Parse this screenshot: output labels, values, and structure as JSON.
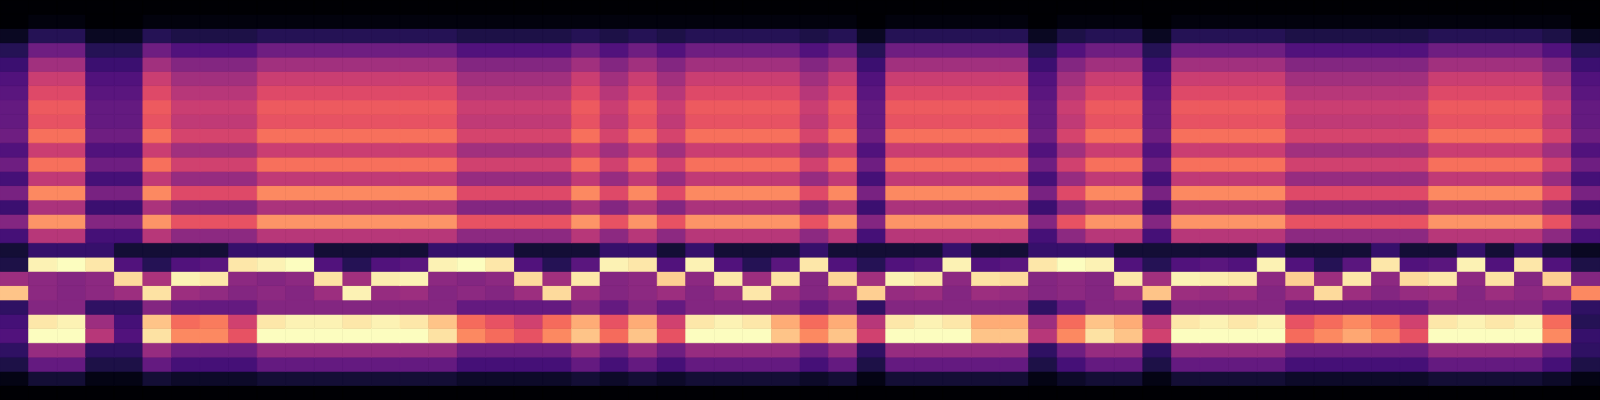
{
  "chart_data": {
    "type": "heatmap",
    "color": "magma",
    "tick_labels": false,
    "xlim": [
      0,
      56
    ],
    "ylim": [
      0,
      28
    ],
    "zlim": [
      0,
      80
    ],
    "cells": [
      [
        0,
        0,
        0,
        0,
        0,
        0,
        0,
        0,
        0,
        0,
        0,
        0,
        0,
        0,
        0,
        0,
        0,
        0,
        0,
        0,
        0,
        0,
        0,
        0,
        0,
        0,
        0,
        0,
        0,
        0,
        0,
        0,
        0,
        0,
        0,
        0,
        0,
        0,
        0,
        0,
        0,
        0,
        0,
        0,
        0,
        0,
        0,
        0,
        0,
        0,
        0,
        0,
        0,
        0,
        0,
        0
      ],
      [
        3,
        8,
        8,
        3,
        3,
        8,
        6,
        6,
        6,
        8,
        8,
        8,
        8,
        8,
        8,
        8,
        6,
        6,
        6,
        6,
        8,
        6,
        8,
        6,
        8,
        8,
        8,
        8,
        6,
        8,
        3,
        8,
        8,
        8,
        8,
        8,
        3,
        6,
        8,
        8,
        3,
        8,
        8,
        8,
        8,
        6,
        6,
        6,
        6,
        6,
        8,
        8,
        8,
        8,
        6,
        3
      ],
      [
        10,
        24,
        24,
        10,
        10,
        24,
        18,
        18,
        18,
        24,
        24,
        24,
        24,
        24,
        24,
        24,
        18,
        18,
        18,
        18,
        24,
        18,
        24,
        18,
        24,
        24,
        24,
        24,
        18,
        24,
        10,
        24,
        24,
        24,
        24,
        24,
        10,
        18,
        24,
        24,
        10,
        24,
        24,
        24,
        24,
        18,
        18,
        18,
        18,
        18,
        24,
        24,
        24,
        24,
        18,
        10
      ],
      [
        14,
        34,
        34,
        14,
        14,
        34,
        26,
        26,
        26,
        34,
        34,
        34,
        34,
        34,
        34,
        34,
        26,
        26,
        26,
        26,
        34,
        26,
        34,
        26,
        34,
        34,
        34,
        34,
        26,
        34,
        14,
        34,
        34,
        34,
        34,
        34,
        14,
        26,
        34,
        34,
        14,
        34,
        34,
        34,
        34,
        26,
        26,
        26,
        26,
        26,
        34,
        34,
        34,
        34,
        26,
        14
      ],
      [
        20,
        80,
        80,
        40,
        20,
        75,
        60,
        60,
        50,
        80,
        80,
        80,
        80,
        80,
        80,
        75,
        60,
        55,
        50,
        60,
        70,
        55,
        70,
        50,
        80,
        80,
        80,
        70,
        60,
        70,
        45,
        80,
        80,
        80,
        70,
        70,
        40,
        60,
        75,
        70,
        45,
        80,
        80,
        80,
        80,
        55,
        60,
        65,
        60,
        50,
        80,
        80,
        80,
        80,
        60,
        15
      ],
      [
        18,
        76,
        78,
        35,
        18,
        70,
        55,
        58,
        45,
        76,
        78,
        78,
        76,
        78,
        76,
        70,
        55,
        50,
        45,
        55,
        66,
        50,
        66,
        45,
        76,
        78,
        76,
        66,
        55,
        66,
        40,
        76,
        78,
        76,
        66,
        66,
        35,
        55,
        70,
        66,
        40,
        76,
        78,
        76,
        78,
        50,
        55,
        60,
        55,
        45,
        76,
        78,
        76,
        78,
        55,
        12
      ],
      [
        14,
        30,
        30,
        14,
        14,
        30,
        24,
        24,
        24,
        30,
        30,
        30,
        30,
        30,
        30,
        30,
        24,
        24,
        24,
        24,
        30,
        24,
        30,
        24,
        30,
        30,
        30,
        30,
        24,
        30,
        14,
        30,
        30,
        30,
        30,
        30,
        14,
        24,
        30,
        30,
        14,
        30,
        30,
        30,
        30,
        24,
        24,
        24,
        24,
        24,
        30,
        30,
        30,
        30,
        24,
        14
      ],
      [
        70,
        32,
        30,
        32,
        35,
        75,
        35,
        33,
        30,
        32,
        30,
        35,
        78,
        34,
        35,
        30,
        32,
        30,
        35,
        74,
        35,
        30,
        32,
        35,
        30,
        34,
        76,
        35,
        30,
        35,
        72,
        34,
        35,
        30,
        35,
        34,
        30,
        32,
        30,
        35,
        70,
        35,
        34,
        35,
        30,
        35,
        74,
        35,
        30,
        34,
        35,
        30,
        35,
        32,
        35,
        60
      ],
      [
        35,
        32,
        30,
        32,
        74,
        38,
        78,
        76,
        32,
        30,
        32,
        75,
        36,
        77,
        78,
        32,
        30,
        32,
        74,
        36,
        76,
        30,
        32,
        72,
        32,
        76,
        35,
        75,
        30,
        73,
        36,
        78,
        76,
        32,
        75,
        74,
        30,
        32,
        30,
        76,
        36,
        78,
        77,
        76,
        32,
        72,
        35,
        76,
        32,
        74,
        76,
        32,
        75,
        30,
        72,
        30
      ],
      [
        10,
        78,
        80,
        76,
        20,
        12,
        20,
        22,
        76,
        78,
        80,
        20,
        12,
        20,
        22,
        78,
        80,
        76,
        20,
        12,
        22,
        78,
        76,
        20,
        78,
        20,
        12,
        22,
        76,
        20,
        12,
        20,
        22,
        78,
        20,
        22,
        76,
        80,
        78,
        20,
        12,
        20,
        22,
        20,
        78,
        20,
        12,
        22,
        76,
        20,
        22,
        78,
        20,
        76,
        20,
        10
      ],
      [
        8,
        15,
        15,
        15,
        8,
        8,
        8,
        8,
        15,
        15,
        15,
        8,
        8,
        8,
        8,
        15,
        15,
        15,
        8,
        8,
        8,
        15,
        15,
        8,
        15,
        8,
        8,
        8,
        15,
        8,
        8,
        8,
        8,
        15,
        8,
        8,
        15,
        15,
        15,
        8,
        8,
        8,
        8,
        8,
        15,
        8,
        8,
        8,
        15,
        8,
        8,
        15,
        8,
        15,
        8,
        5
      ],
      [
        18,
        40,
        40,
        18,
        18,
        40,
        32,
        32,
        32,
        40,
        40,
        40,
        40,
        40,
        40,
        40,
        32,
        32,
        32,
        32,
        40,
        32,
        40,
        32,
        40,
        40,
        40,
        40,
        32,
        40,
        18,
        40,
        40,
        40,
        40,
        40,
        18,
        32,
        40,
        40,
        18,
        40,
        40,
        40,
        40,
        32,
        32,
        32,
        32,
        32,
        40,
        40,
        40,
        40,
        32,
        18
      ],
      [
        30,
        62,
        62,
        30,
        30,
        62,
        50,
        50,
        50,
        62,
        62,
        62,
        62,
        62,
        62,
        62,
        50,
        50,
        50,
        50,
        62,
        50,
        62,
        50,
        62,
        62,
        62,
        62,
        50,
        62,
        30,
        62,
        62,
        62,
        62,
        62,
        30,
        50,
        62,
        62,
        30,
        62,
        62,
        62,
        62,
        50,
        50,
        50,
        50,
        50,
        62,
        62,
        62,
        62,
        50,
        30
      ],
      [
        16,
        38,
        38,
        16,
        16,
        38,
        30,
        30,
        30,
        38,
        38,
        38,
        38,
        38,
        38,
        38,
        30,
        30,
        30,
        30,
        38,
        30,
        38,
        30,
        38,
        38,
        38,
        38,
        30,
        38,
        16,
        38,
        38,
        38,
        38,
        38,
        16,
        30,
        38,
        38,
        16,
        38,
        38,
        38,
        38,
        30,
        30,
        30,
        30,
        30,
        38,
        38,
        38,
        38,
        30,
        16
      ],
      [
        28,
        60,
        60,
        28,
        28,
        60,
        48,
        48,
        48,
        60,
        60,
        60,
        60,
        60,
        60,
        60,
        48,
        48,
        48,
        48,
        60,
        48,
        60,
        48,
        60,
        60,
        60,
        60,
        48,
        60,
        28,
        60,
        60,
        60,
        60,
        60,
        28,
        48,
        60,
        60,
        28,
        60,
        60,
        60,
        60,
        48,
        48,
        48,
        48,
        48,
        60,
        60,
        60,
        60,
        48,
        28
      ],
      [
        18,
        42,
        42,
        18,
        18,
        42,
        34,
        34,
        34,
        42,
        42,
        42,
        42,
        42,
        42,
        42,
        34,
        34,
        34,
        34,
        42,
        34,
        42,
        34,
        42,
        42,
        42,
        42,
        34,
        42,
        18,
        42,
        42,
        42,
        42,
        42,
        18,
        34,
        42,
        42,
        18,
        42,
        42,
        42,
        42,
        34,
        34,
        34,
        34,
        34,
        42,
        42,
        42,
        42,
        34,
        18
      ],
      [
        26,
        56,
        56,
        26,
        26,
        56,
        45,
        45,
        45,
        56,
        56,
        56,
        56,
        56,
        56,
        56,
        45,
        45,
        45,
        45,
        56,
        45,
        56,
        45,
        56,
        56,
        56,
        56,
        45,
        56,
        26,
        56,
        56,
        56,
        56,
        56,
        26,
        45,
        56,
        56,
        26,
        56,
        56,
        56,
        56,
        45,
        45,
        45,
        45,
        45,
        56,
        56,
        56,
        56,
        45,
        26
      ],
      [
        20,
        44,
        44,
        20,
        20,
        44,
        36,
        36,
        36,
        44,
        44,
        44,
        44,
        44,
        44,
        44,
        36,
        36,
        36,
        36,
        44,
        36,
        44,
        36,
        44,
        44,
        44,
        44,
        36,
        44,
        20,
        44,
        44,
        44,
        44,
        44,
        20,
        36,
        44,
        44,
        20,
        44,
        44,
        44,
        44,
        36,
        36,
        36,
        36,
        36,
        44,
        44,
        44,
        44,
        36,
        20
      ],
      [
        26,
        56,
        56,
        26,
        26,
        56,
        46,
        46,
        46,
        56,
        56,
        56,
        56,
        56,
        56,
        56,
        46,
        46,
        46,
        46,
        56,
        46,
        56,
        46,
        56,
        56,
        56,
        56,
        46,
        56,
        26,
        56,
        56,
        56,
        56,
        56,
        26,
        46,
        56,
        56,
        26,
        56,
        56,
        56,
        56,
        46,
        46,
        46,
        46,
        46,
        56,
        56,
        56,
        56,
        46,
        26
      ],
      [
        24,
        50,
        50,
        24,
        24,
        50,
        42,
        42,
        42,
        50,
        50,
        50,
        50,
        50,
        50,
        50,
        42,
        42,
        42,
        42,
        50,
        42,
        50,
        42,
        50,
        50,
        50,
        50,
        42,
        50,
        24,
        50,
        50,
        50,
        50,
        50,
        24,
        42,
        50,
        50,
        24,
        50,
        50,
        50,
        50,
        42,
        42,
        42,
        42,
        42,
        50,
        50,
        50,
        50,
        42,
        24
      ],
      [
        24,
        52,
        52,
        24,
        24,
        52,
        44,
        44,
        44,
        52,
        52,
        52,
        52,
        52,
        52,
        52,
        44,
        44,
        44,
        44,
        52,
        44,
        52,
        44,
        52,
        52,
        52,
        52,
        44,
        52,
        24,
        52,
        52,
        52,
        52,
        52,
        24,
        44,
        52,
        52,
        24,
        52,
        52,
        52,
        52,
        44,
        44,
        44,
        44,
        44,
        52,
        52,
        52,
        52,
        44,
        24
      ],
      [
        22,
        48,
        48,
        22,
        22,
        48,
        40,
        40,
        40,
        48,
        48,
        48,
        48,
        48,
        48,
        48,
        40,
        40,
        40,
        40,
        48,
        40,
        48,
        40,
        48,
        48,
        48,
        48,
        40,
        48,
        22,
        48,
        48,
        48,
        48,
        48,
        22,
        40,
        48,
        48,
        22,
        48,
        48,
        48,
        48,
        40,
        40,
        40,
        40,
        40,
        48,
        48,
        48,
        48,
        40,
        22
      ],
      [
        20,
        44,
        44,
        20,
        20,
        44,
        36,
        36,
        36,
        44,
        44,
        44,
        44,
        44,
        44,
        44,
        36,
        36,
        36,
        36,
        44,
        36,
        44,
        36,
        44,
        44,
        44,
        44,
        36,
        44,
        20,
        44,
        44,
        44,
        44,
        44,
        20,
        36,
        44,
        44,
        20,
        44,
        44,
        44,
        44,
        36,
        36,
        36,
        36,
        36,
        44,
        44,
        44,
        44,
        36,
        20
      ],
      [
        16,
        36,
        36,
        16,
        16,
        36,
        30,
        30,
        30,
        36,
        36,
        36,
        36,
        36,
        36,
        36,
        30,
        30,
        30,
        30,
        36,
        30,
        36,
        30,
        36,
        36,
        36,
        36,
        30,
        36,
        16,
        36,
        36,
        36,
        36,
        36,
        16,
        30,
        36,
        36,
        16,
        36,
        36,
        36,
        36,
        30,
        30,
        30,
        30,
        30,
        36,
        36,
        36,
        36,
        30,
        16
      ],
      [
        12,
        26,
        26,
        12,
        12,
        26,
        20,
        20,
        20,
        26,
        26,
        26,
        26,
        26,
        26,
        26,
        20,
        20,
        20,
        20,
        26,
        20,
        26,
        20,
        26,
        26,
        26,
        26,
        20,
        26,
        12,
        26,
        26,
        26,
        26,
        26,
        12,
        20,
        26,
        26,
        12,
        26,
        26,
        26,
        26,
        20,
        20,
        20,
        20,
        20,
        26,
        26,
        26,
        26,
        20,
        12
      ],
      [
        5,
        12,
        12,
        5,
        5,
        12,
        10,
        10,
        10,
        12,
        12,
        12,
        12,
        12,
        12,
        12,
        10,
        10,
        10,
        10,
        12,
        10,
        12,
        10,
        12,
        12,
        12,
        12,
        10,
        12,
        5,
        12,
        12,
        12,
        12,
        12,
        5,
        10,
        12,
        12,
        5,
        12,
        12,
        12,
        12,
        10,
        10,
        10,
        10,
        10,
        12,
        12,
        12,
        12,
        10,
        5
      ],
      [
        0,
        2,
        2,
        0,
        0,
        2,
        2,
        2,
        2,
        2,
        2,
        2,
        2,
        2,
        2,
        2,
        2,
        2,
        2,
        2,
        2,
        2,
        2,
        2,
        2,
        2,
        2,
        2,
        2,
        2,
        0,
        2,
        2,
        2,
        2,
        2,
        0,
        2,
        2,
        2,
        0,
        2,
        2,
        2,
        2,
        2,
        2,
        2,
        2,
        2,
        2,
        2,
        2,
        2,
        2,
        0
      ],
      [
        0,
        0,
        0,
        0,
        0,
        0,
        0,
        0,
        0,
        0,
        0,
        0,
        0,
        0,
        0,
        0,
        0,
        0,
        0,
        0,
        0,
        0,
        0,
        0,
        0,
        0,
        0,
        0,
        0,
        0,
        0,
        0,
        0,
        0,
        0,
        0,
        0,
        0,
        0,
        0,
        0,
        0,
        0,
        0,
        0,
        0,
        0,
        0,
        0,
        0,
        0,
        0,
        0,
        0,
        0,
        0
      ]
    ]
  }
}
